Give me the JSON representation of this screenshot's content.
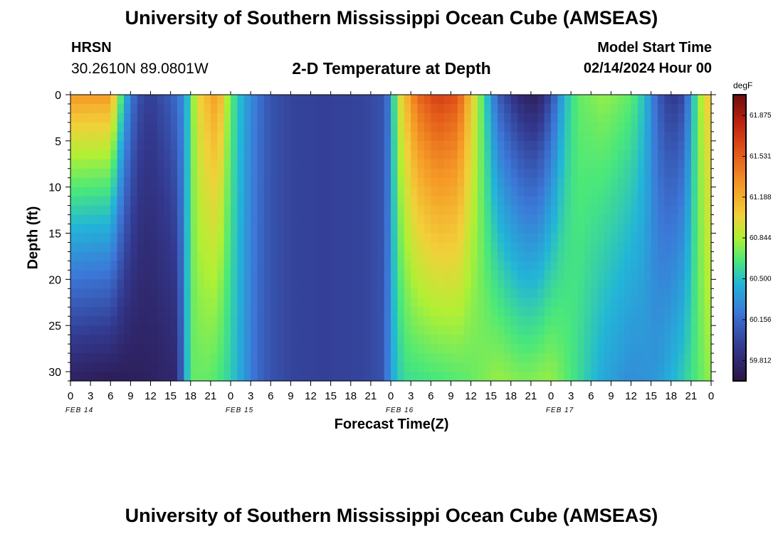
{
  "header": {
    "title": "University of Southern Mississippi Ocean Cube (AMSEAS)",
    "station": "HRSN",
    "coords": "30.2610N  89.0801W",
    "subtitle": "2-D Temperature at Depth",
    "model_start_label": "Model Start Time",
    "model_start_value": "02/14/2024 Hour 00"
  },
  "footer": {
    "title": "University of Southern Mississippi Ocean Cube (AMSEAS)"
  },
  "colorbar": {
    "unit": "degF"
  },
  "chart_data": {
    "type": "heatmap",
    "title": "2-D Temperature at Depth",
    "xlabel": "Forecast Time(Z)",
    "ylabel": "Depth (ft)",
    "x_hours_range": [
      0,
      96
    ],
    "x_tick_labels": [
      "0",
      "3",
      "6",
      "9",
      "12",
      "15",
      "18",
      "21",
      "0",
      "3",
      "6",
      "9",
      "12",
      "15",
      "18",
      "21",
      "0",
      "3",
      "6",
      "9",
      "12",
      "15",
      "18",
      "21",
      "0",
      "3",
      "6",
      "9",
      "12",
      "15",
      "18",
      "21",
      "0"
    ],
    "day_labels": [
      "FEB 14",
      "FEB 15",
      "FEB 16",
      "FEB 17"
    ],
    "ylim": [
      0,
      31
    ],
    "y_ticks": [
      0,
      5,
      10,
      15,
      20,
      25,
      30
    ],
    "colorbar_range": [
      59.64,
      62.05
    ],
    "colorbar_labels": [
      "61.875",
      "61.531",
      "61.188",
      "60.844",
      "60.500",
      "60.156",
      "59.812"
    ],
    "surface_profile_degF": [
      [
        0,
        61.3
      ],
      [
        6,
        61.3
      ],
      [
        8,
        60.5
      ],
      [
        10,
        60.05
      ],
      [
        12,
        59.95
      ],
      [
        15,
        60.1
      ],
      [
        17,
        60.3
      ],
      [
        19,
        61.0
      ],
      [
        22,
        61.3
      ],
      [
        24,
        60.7
      ],
      [
        26,
        60.4
      ],
      [
        28,
        60.2
      ],
      [
        30,
        60.05
      ],
      [
        33,
        59.98
      ],
      [
        38,
        59.96
      ],
      [
        44,
        59.98
      ],
      [
        47,
        60.05
      ],
      [
        48,
        60.3
      ],
      [
        49,
        60.9
      ],
      [
        52,
        61.5
      ],
      [
        55,
        61.7
      ],
      [
        58,
        61.6
      ],
      [
        60,
        61.1
      ],
      [
        62,
        60.6
      ],
      [
        64,
        60.1
      ],
      [
        66,
        59.9
      ],
      [
        68,
        59.75
      ],
      [
        70,
        59.72
      ],
      [
        72,
        60.0
      ],
      [
        74,
        60.45
      ],
      [
        76,
        60.7
      ],
      [
        80,
        60.8
      ],
      [
        84,
        60.7
      ],
      [
        86,
        60.5
      ],
      [
        88,
        60.1
      ],
      [
        90,
        59.9
      ],
      [
        92,
        60.0
      ],
      [
        93,
        60.4
      ],
      [
        95,
        61.0
      ],
      [
        96,
        61.1
      ]
    ],
    "bottom_profile_degF": [
      [
        0,
        59.75
      ],
      [
        6,
        59.7
      ],
      [
        12,
        59.75
      ],
      [
        16,
        59.8
      ],
      [
        17,
        60.3
      ],
      [
        18,
        60.7
      ],
      [
        21,
        60.7
      ],
      [
        24,
        60.55
      ],
      [
        26,
        60.35
      ],
      [
        28,
        60.15
      ],
      [
        30,
        60.05
      ],
      [
        33,
        59.98
      ],
      [
        38,
        59.96
      ],
      [
        44,
        59.98
      ],
      [
        47,
        60.05
      ],
      [
        48,
        60.4
      ],
      [
        50,
        60.6
      ],
      [
        56,
        60.65
      ],
      [
        60,
        60.7
      ],
      [
        64,
        60.8
      ],
      [
        68,
        60.75
      ],
      [
        72,
        60.8
      ],
      [
        76,
        60.6
      ],
      [
        80,
        60.4
      ],
      [
        84,
        60.3
      ],
      [
        88,
        60.35
      ],
      [
        92,
        60.55
      ],
      [
        96,
        60.8
      ]
    ]
  }
}
